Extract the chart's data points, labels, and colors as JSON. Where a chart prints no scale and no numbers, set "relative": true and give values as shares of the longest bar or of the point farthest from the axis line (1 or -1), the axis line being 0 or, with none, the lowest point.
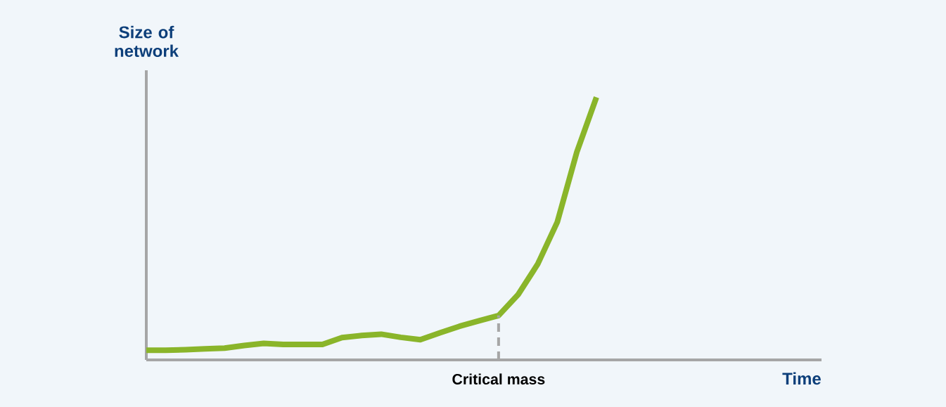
{
  "chart_data": {
    "type": "line",
    "relative": true,
    "ylabel": "Size of network",
    "annotations": [
      "Critical mass",
      "Time"
    ],
    "categories": [
      null,
      null,
      null,
      null,
      null,
      null,
      null,
      null,
      null,
      null,
      null,
      null,
      null,
      null,
      null,
      null,
      null,
      null,
      null,
      null,
      null,
      null,
      null,
      null
    ],
    "series": [
      {
        "color": "#8ab52a",
        "values": [
          0.037,
          0.037,
          0.039,
          0.042,
          0.045,
          0.055,
          0.063,
          0.059,
          0.059,
          0.059,
          0.085,
          0.093,
          0.098,
          0.086,
          0.077,
          0.103,
          0.128,
          0.149,
          0.169,
          0.249,
          0.365,
          0.525,
          0.792,
          1.0
        ]
      }
    ]
  }
}
